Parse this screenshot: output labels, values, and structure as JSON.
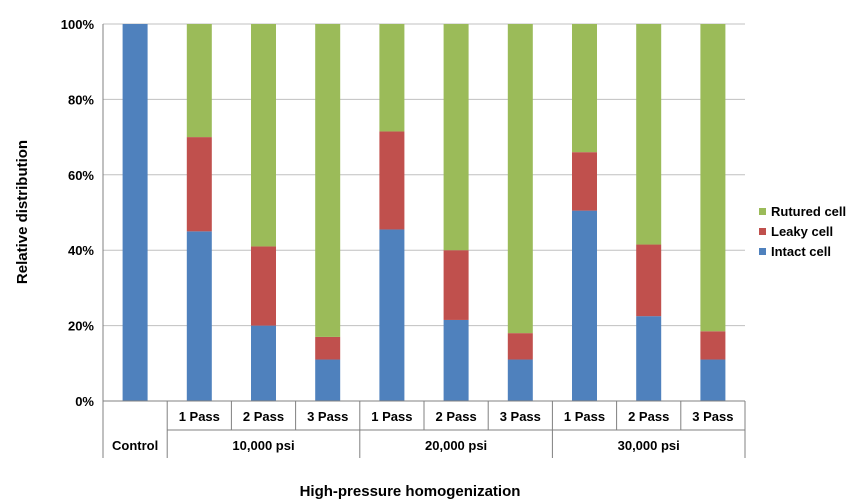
{
  "chart_data": {
    "type": "bar",
    "stacked": true,
    "percent_stacked": true,
    "categories": [
      "Control",
      "1 Pass",
      "2 Pass",
      "3 Pass",
      "1 Pass",
      "2 Pass",
      "3 Pass",
      "1 Pass",
      "2 Pass",
      "3 Pass"
    ],
    "groups": [
      {
        "label": "Control",
        "size": 1
      },
      {
        "label": "10,000 psi",
        "size": 3
      },
      {
        "label": "20,000 psi",
        "size": 3
      },
      {
        "label": "30,000 psi",
        "size": 3
      }
    ],
    "series": [
      {
        "name": "Intact cell",
        "color": "#4f81bd",
        "values": [
          100,
          45,
          20,
          11,
          45.5,
          21.5,
          11,
          50.5,
          22.5,
          11
        ]
      },
      {
        "name": "Leaky cell",
        "color": "#c0504d",
        "values": [
          0,
          25,
          21,
          6,
          26,
          18.5,
          7,
          15.5,
          19,
          7.5
        ]
      },
      {
        "name": "Rutured cell",
        "color": "#9bbb59",
        "values": [
          0,
          30,
          59,
          83,
          28.5,
          60,
          82,
          34,
          58.5,
          81.5
        ]
      }
    ],
    "legend_order": [
      "Rutured cell",
      "Leaky cell",
      "Intact cell"
    ],
    "legend_position": "right",
    "yticks": [
      "0%",
      "20%",
      "40%",
      "60%",
      "80%",
      "100%"
    ],
    "ylim": [
      0,
      100
    ],
    "ylabel": "Relative distribution",
    "xlabel": "High-pressure homogenization",
    "grid": true
  }
}
